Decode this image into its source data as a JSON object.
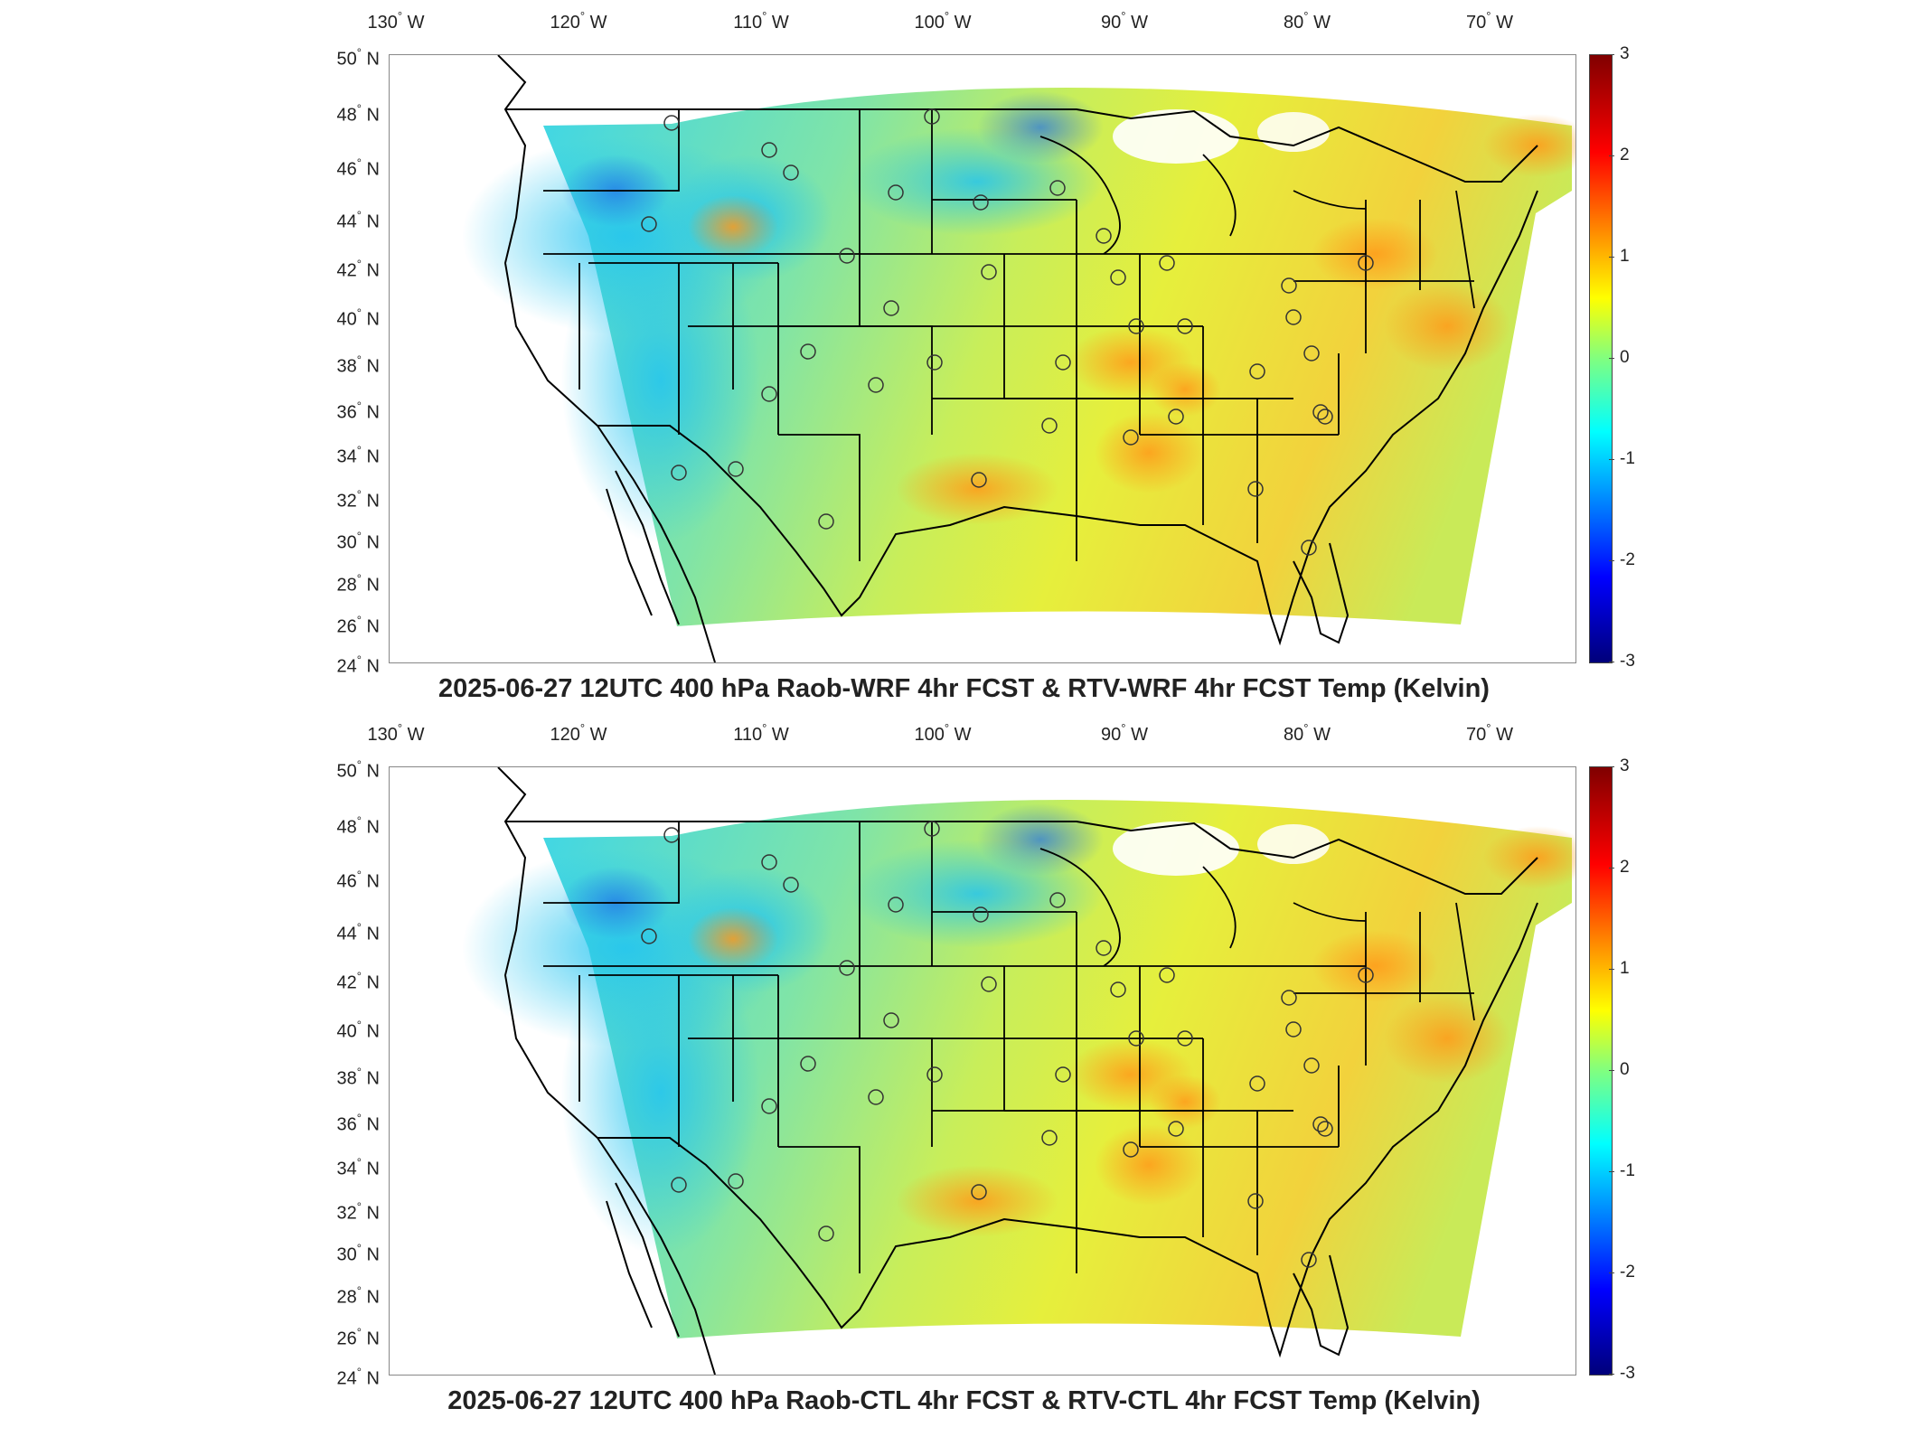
{
  "panels": [
    {
      "id": "top",
      "title": "2025-06-27 12UTC 400 hPa Raob-WRF 4hr FCST & RTV-WRF 4hr FCST Temp (Kelvin)"
    },
    {
      "id": "bottom",
      "title": "2025-06-27 12UTC 400 hPa Raob-CTL 4hr FCST & RTV-CTL 4hr FCST Temp (Kelvin)"
    }
  ],
  "longitude_labels": [
    "130",
    "120",
    "110",
    "100",
    "90",
    "80",
    "70"
  ],
  "longitude_suffix": "W",
  "latitude_labels": [
    "50",
    "48",
    "46",
    "44",
    "42",
    "40",
    "38",
    "36",
    "34",
    "32",
    "30",
    "28",
    "26",
    "24"
  ],
  "latitude_suffix": "N",
  "colorbar_ticks": [
    "3",
    "2",
    "1",
    "0",
    "-1",
    "-2",
    "-3"
  ],
  "colors": {
    "colormap": "jet",
    "frame": "#888888",
    "borders": "#000000"
  },
  "colorbar_range": [
    -3,
    3
  ]
}
